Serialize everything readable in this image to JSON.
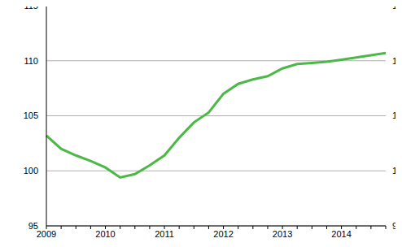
{
  "chart_data": {
    "type": "line",
    "categories": [
      "2009",
      null,
      null,
      null,
      "2010",
      null,
      null,
      null,
      "2011",
      null,
      null,
      null,
      "2012",
      null,
      null,
      null,
      "2013",
      null,
      null,
      null,
      "2014",
      null,
      null,
      null
    ],
    "values": [
      103.2,
      102.0,
      101.4,
      100.9,
      100.3,
      99.4,
      99.7,
      100.5,
      101.4,
      103.0,
      104.4,
      105.3,
      107.0,
      107.9,
      108.3,
      108.6,
      109.3,
      109.7,
      109.8,
      109.9,
      110.1,
      110.3,
      110.5,
      110.7
    ],
    "color": "#4cb847",
    "ylim": [
      95,
      115
    ],
    "yticks": [
      95,
      100,
      105,
      110,
      115
    ],
    "grid": true
  }
}
